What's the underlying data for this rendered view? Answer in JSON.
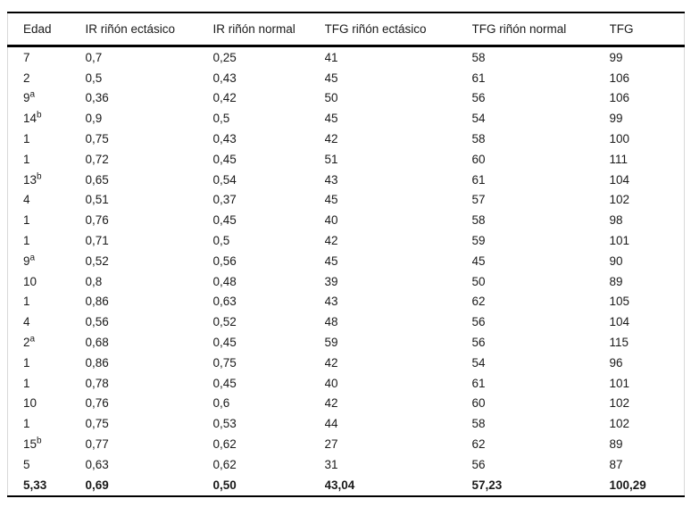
{
  "page": {
    "background": "#ffffff",
    "text_color": "#1a1a1a",
    "rule_color": "#000000",
    "edge_color": "#d9d9d9"
  },
  "table": {
    "headers": [
      "Edad",
      "IR riñón ectásico",
      "IR riñón normal",
      "TFG riñón ectásico",
      "TFG riñón normal",
      "TFG"
    ],
    "rows": [
      {
        "cells": [
          "7",
          "0,7",
          "0,25",
          "41",
          "58",
          "99"
        ],
        "edad_sup": "",
        "bold": false
      },
      {
        "cells": [
          "2",
          "0,5",
          "0,43",
          "45",
          "61",
          "106"
        ],
        "edad_sup": "",
        "bold": false
      },
      {
        "cells": [
          "9",
          "0,36",
          "0,42",
          "50",
          "56",
          "106"
        ],
        "edad_sup": "a",
        "bold": false
      },
      {
        "cells": [
          "14",
          "0,9",
          "0,5",
          "45",
          "54",
          "99"
        ],
        "edad_sup": "b",
        "bold": false
      },
      {
        "cells": [
          "1",
          "0,75",
          "0,43",
          "42",
          "58",
          "100"
        ],
        "edad_sup": "",
        "bold": false
      },
      {
        "cells": [
          "1",
          "0,72",
          "0,45",
          "51",
          "60",
          "111"
        ],
        "edad_sup": "",
        "bold": false
      },
      {
        "cells": [
          "13",
          "0,65",
          "0,54",
          "43",
          "61",
          "104"
        ],
        "edad_sup": "b",
        "bold": false
      },
      {
        "cells": [
          "4",
          "0,51",
          "0,37",
          "45",
          "57",
          "102"
        ],
        "edad_sup": "",
        "bold": false
      },
      {
        "cells": [
          "1",
          "0,76",
          "0,45",
          "40",
          "58",
          "98"
        ],
        "edad_sup": "",
        "bold": false
      },
      {
        "cells": [
          "1",
          "0,71",
          "0,5",
          "42",
          "59",
          "101"
        ],
        "edad_sup": "",
        "bold": false
      },
      {
        "cells": [
          "9",
          "0,52",
          "0,56",
          "45",
          "45",
          "90"
        ],
        "edad_sup": "a",
        "bold": false
      },
      {
        "cells": [
          "10",
          "0,8",
          "0,48",
          "39",
          "50",
          "89"
        ],
        "edad_sup": "",
        "bold": false
      },
      {
        "cells": [
          "1",
          "0,86",
          "0,63",
          "43",
          "62",
          "105"
        ],
        "edad_sup": "",
        "bold": false
      },
      {
        "cells": [
          "4",
          "0,56",
          "0,52",
          "48",
          "56",
          "104"
        ],
        "edad_sup": "",
        "bold": false
      },
      {
        "cells": [
          "2",
          "0,68",
          "0,45",
          "59",
          "56",
          "115"
        ],
        "edad_sup": "a",
        "bold": false
      },
      {
        "cells": [
          "1",
          "0,86",
          "0,75",
          "42",
          "54",
          "96"
        ],
        "edad_sup": "",
        "bold": false
      },
      {
        "cells": [
          "1",
          "0,78",
          "0,45",
          "40",
          "61",
          "101"
        ],
        "edad_sup": "",
        "bold": false
      },
      {
        "cells": [
          "10",
          "0,76",
          "0,6",
          "42",
          "60",
          "102"
        ],
        "edad_sup": "",
        "bold": false
      },
      {
        "cells": [
          "1",
          "0,75",
          "0,53",
          "44",
          "58",
          "102"
        ],
        "edad_sup": "",
        "bold": false
      },
      {
        "cells": [
          "15",
          "0,77",
          "0,62",
          "27",
          "62",
          "89"
        ],
        "edad_sup": "b",
        "bold": false
      },
      {
        "cells": [
          "5",
          "0,63",
          "0,62",
          "31",
          "56",
          "87"
        ],
        "edad_sup": "",
        "bold": false
      },
      {
        "cells": [
          "5,33",
          "0,69",
          "0,50",
          "43,04",
          "57,23",
          "100,29"
        ],
        "edad_sup": "",
        "bold": true
      }
    ]
  }
}
